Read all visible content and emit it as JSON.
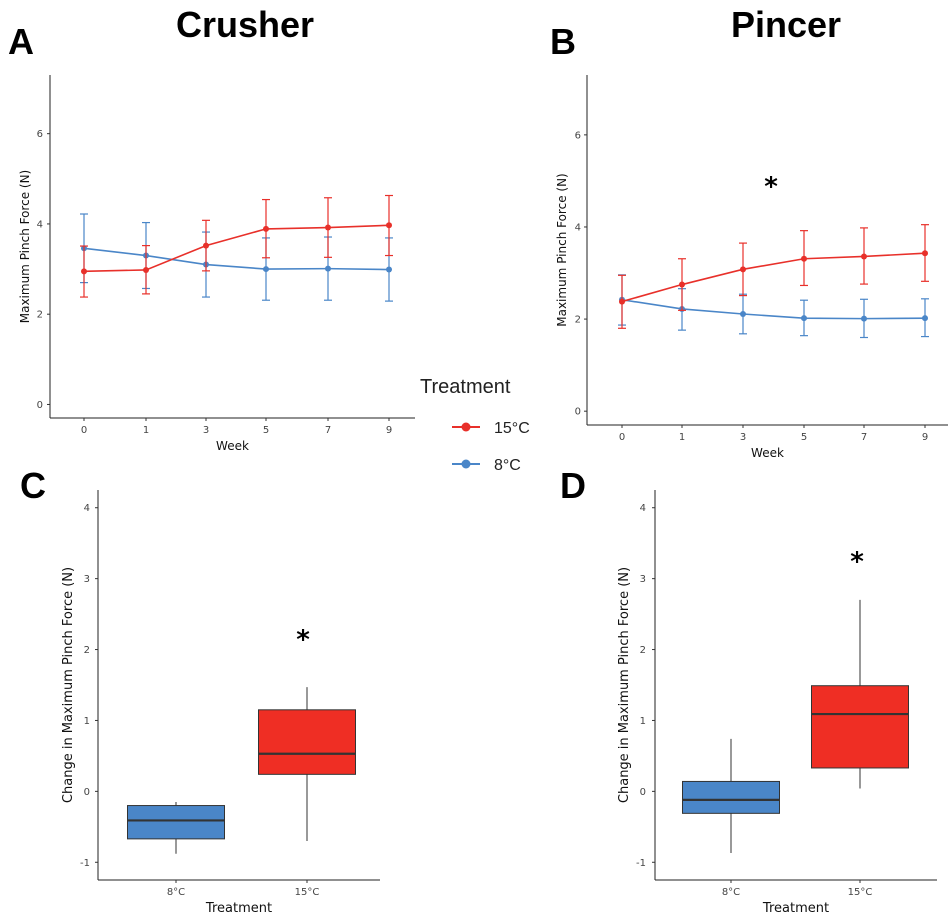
{
  "panels": {
    "A": {
      "label": "A",
      "title": "Crusher"
    },
    "B": {
      "label": "B",
      "title": "Pincer"
    },
    "C": {
      "label": "C",
      "title": ""
    },
    "D": {
      "label": "D",
      "title": ""
    }
  },
  "legend": {
    "title": "Treatment",
    "items": [
      {
        "name": "15°C",
        "color": "#e8302a"
      },
      {
        "name": "8°C",
        "color": "#4a86c8"
      }
    ]
  },
  "colors": {
    "warm": "#e8302a",
    "cold": "#4a86c8",
    "box_warm": "#ef2e24",
    "box_cold": "#4a86c8"
  },
  "chart_data": [
    {
      "id": "A",
      "type": "line",
      "title": "Crusher",
      "xlabel": "Week",
      "ylabel": "Maximum Pinch Force (N)",
      "x": [
        "0",
        "1",
        "3",
        "5",
        "7",
        "9"
      ],
      "ylim": [
        -0.3,
        7.3
      ],
      "yticks": [
        "0",
        "2",
        "4",
        "6"
      ],
      "grid": false,
      "series": [
        {
          "name": "15°C",
          "values": [
            2.95,
            2.98,
            3.52,
            3.89,
            3.92,
            3.97
          ],
          "err_low": [
            2.38,
            2.45,
            2.96,
            3.25,
            3.26,
            3.3
          ],
          "err_high": [
            3.51,
            3.52,
            4.08,
            4.54,
            4.58,
            4.63
          ]
        },
        {
          "name": "8°C",
          "values": [
            3.46,
            3.3,
            3.1,
            3.0,
            3.01,
            2.99
          ],
          "err_low": [
            2.7,
            2.57,
            2.38,
            2.31,
            2.31,
            2.29
          ],
          "err_high": [
            4.22,
            4.03,
            3.82,
            3.69,
            3.71,
            3.69
          ]
        }
      ],
      "annotation": ""
    },
    {
      "id": "B",
      "type": "line",
      "title": "Pincer",
      "xlabel": "Week",
      "ylabel": "Maximum Pinch Force (N)",
      "x": [
        "0",
        "1",
        "3",
        "5",
        "7",
        "9"
      ],
      "ylim": [
        -0.3,
        7.3
      ],
      "yticks": [
        "0",
        "2",
        "4",
        "6"
      ],
      "grid": false,
      "series": [
        {
          "name": "15°C",
          "values": [
            2.38,
            2.75,
            3.08,
            3.31,
            3.36,
            3.43
          ],
          "err_low": [
            1.8,
            2.19,
            2.51,
            2.73,
            2.76,
            2.82
          ],
          "err_high": [
            2.95,
            3.31,
            3.65,
            3.92,
            3.98,
            4.05
          ]
        },
        {
          "name": "8°C",
          "values": [
            2.42,
            2.22,
            2.11,
            2.02,
            2.01,
            2.02
          ],
          "err_low": [
            1.87,
            1.76,
            1.68,
            1.64,
            1.6,
            1.62
          ],
          "err_high": [
            2.96,
            2.66,
            2.54,
            2.41,
            2.43,
            2.44
          ]
        }
      ],
      "annotation": "*"
    },
    {
      "id": "C",
      "type": "box",
      "title": "",
      "xlabel": "Treatment",
      "ylabel": "Change in Maximum Pinch Force (N)",
      "categories": [
        "8°C",
        "15°C"
      ],
      "ylim": [
        -1.25,
        4.25
      ],
      "yticks": [
        "-1",
        "0",
        "1",
        "2",
        "3",
        "4"
      ],
      "boxes": [
        {
          "name": "8°C",
          "min": -0.88,
          "q1": -0.67,
          "median": -0.41,
          "q3": -0.2,
          "max": -0.15
        },
        {
          "name": "15°C",
          "min": -0.7,
          "q1": 0.24,
          "median": 0.53,
          "q3": 1.15,
          "max": 1.47
        }
      ],
      "annotation": "*"
    },
    {
      "id": "D",
      "type": "box",
      "title": "",
      "xlabel": "Treatment",
      "ylabel": "Change in Maximum Pinch Force (N)",
      "categories": [
        "8°C",
        "15°C"
      ],
      "ylim": [
        -1.25,
        4.25
      ],
      "yticks": [
        "-1",
        "0",
        "1",
        "2",
        "3",
        "4"
      ],
      "boxes": [
        {
          "name": "8°C",
          "min": -0.87,
          "q1": -0.31,
          "median": -0.12,
          "q3": 0.14,
          "max": 0.74
        },
        {
          "name": "15°C",
          "min": 0.04,
          "q1": 0.33,
          "median": 1.09,
          "q3": 1.49,
          "max": 2.7
        }
      ],
      "annotation": "*"
    }
  ]
}
